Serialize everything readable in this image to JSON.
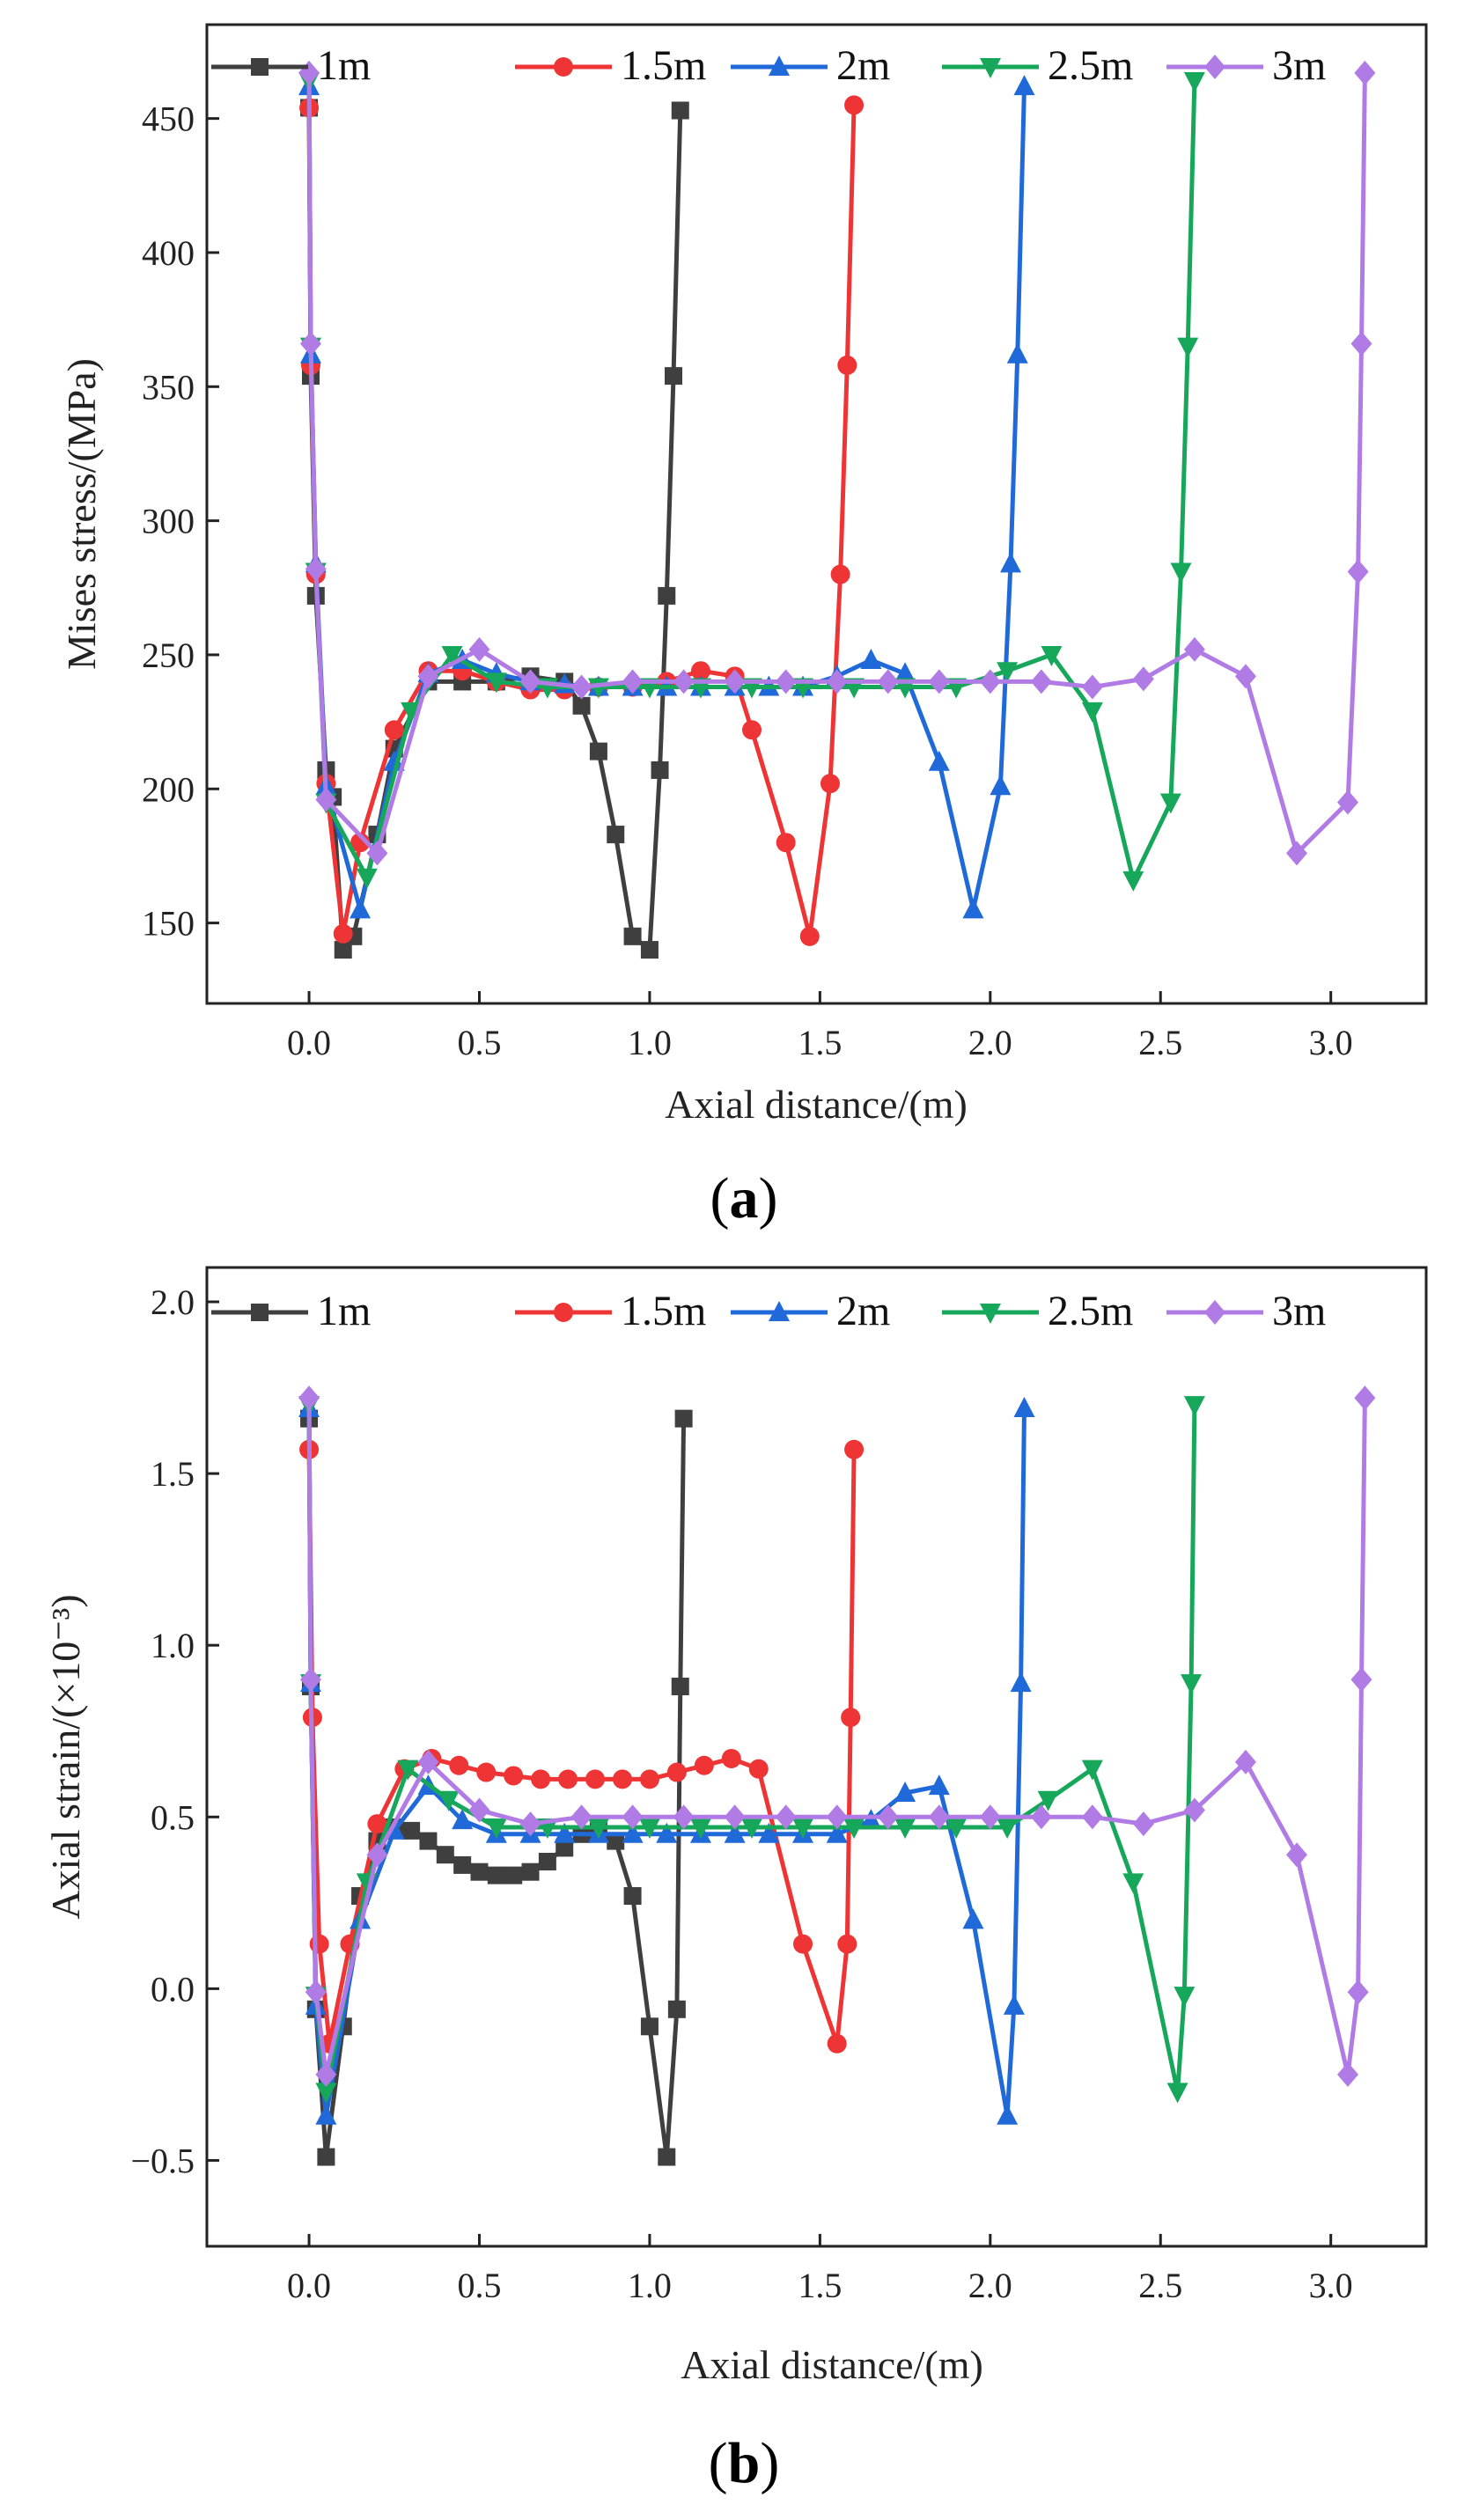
{
  "chart_data": [
    {
      "type": "line",
      "panel_label": "(a)",
      "panel_letter": "a",
      "xlabel": "Axial distance/(m)",
      "ylabel": "Mises stress/(MPa)",
      "xlim": [
        -0.3,
        3.28
      ],
      "ylim": [
        120,
        485
      ],
      "xticks": [
        "0.0",
        "0.5",
        "1.0",
        "1.5",
        "2.0",
        "2.5",
        "3.0"
      ],
      "yticks": [
        "150",
        "200",
        "250",
        "300",
        "350",
        "400",
        "450"
      ],
      "legend": [
        "1m",
        "1.5m",
        "2m",
        "2.5m",
        "3m"
      ],
      "series": [
        {
          "name": "1m",
          "color": "#3f3f3f",
          "marker": "square",
          "x": [
            0,
            0.005,
            0.02,
            0.05,
            0.07,
            0.1,
            0.13,
            0.2,
            0.25,
            0.35,
            0.45,
            0.55,
            0.65,
            0.75,
            0.8,
            0.85,
            0.9,
            0.95,
            1.0,
            1.03,
            1.05,
            1.07,
            1.09
          ],
          "y": [
            454,
            354,
            272,
            207,
            197,
            140,
            145,
            183,
            215,
            240,
            240,
            240,
            242,
            240,
            231,
            214,
            183,
            145,
            140,
            207,
            272,
            354,
            453
          ]
        },
        {
          "name": "1.5m",
          "color": "#ee3434",
          "marker": "circle",
          "x": [
            0,
            0.005,
            0.02,
            0.05,
            0.1,
            0.15,
            0.25,
            0.35,
            0.45,
            0.55,
            0.65,
            0.75,
            0.85,
            0.95,
            1.05,
            1.15,
            1.25,
            1.3,
            1.4,
            1.47,
            1.53,
            1.56,
            1.58,
            1.6
          ],
          "y": [
            454,
            358,
            280,
            202,
            146,
            180,
            222,
            244,
            244,
            240,
            237,
            237,
            238,
            238,
            240,
            244,
            242,
            222,
            180,
            145,
            202,
            280,
            358,
            455
          ]
        },
        {
          "name": "2m",
          "color": "#1f69d9",
          "marker": "triangle-up",
          "x": [
            0,
            0.005,
            0.02,
            0.05,
            0.15,
            0.25,
            0.35,
            0.45,
            0.55,
            0.65,
            0.75,
            0.85,
            0.95,
            1.05,
            1.15,
            1.25,
            1.35,
            1.45,
            1.55,
            1.65,
            1.75,
            1.85,
            1.95,
            2.03,
            2.06,
            2.08,
            2.1
          ],
          "y": [
            462,
            362,
            284,
            201,
            155,
            210,
            243,
            248,
            243,
            240,
            239,
            238,
            238,
            238,
            238,
            238,
            238,
            238,
            242,
            248,
            243,
            210,
            155,
            201,
            284,
            362,
            462
          ]
        },
        {
          "name": "2.5m",
          "color": "#17a75b",
          "marker": "triangle-down",
          "x": [
            0,
            0.005,
            0.02,
            0.05,
            0.17,
            0.3,
            0.42,
            0.55,
            0.7,
            0.85,
            1.0,
            1.15,
            1.3,
            1.45,
            1.6,
            1.75,
            1.9,
            2.05,
            2.18,
            2.3,
            2.42,
            2.53,
            2.56,
            2.58,
            2.6
          ],
          "y": [
            464,
            365,
            281,
            195,
            167,
            229,
            250,
            240,
            238,
            238,
            238,
            238,
            238,
            238,
            238,
            238,
            238,
            244,
            250,
            229,
            166,
            195,
            281,
            365,
            464
          ]
        },
        {
          "name": "3m",
          "color": "#b17be6",
          "marker": "diamond",
          "x": [
            0,
            0.005,
            0.02,
            0.05,
            0.2,
            0.35,
            0.5,
            0.65,
            0.8,
            0.95,
            1.1,
            1.25,
            1.4,
            1.55,
            1.7,
            1.85,
            2.0,
            2.15,
            2.3,
            2.45,
            2.6,
            2.75,
            2.9,
            3.05,
            3.08,
            3.09,
            3.1
          ],
          "y": [
            467,
            366,
            282,
            196,
            176,
            242,
            252,
            240,
            238,
            240,
            240,
            240,
            240,
            240,
            240,
            240,
            240,
            240,
            238,
            241,
            252,
            242,
            176,
            195,
            281,
            366,
            467
          ]
        }
      ]
    },
    {
      "type": "line",
      "panel_label": "(b)",
      "panel_letter": "b",
      "xlabel": "Axial distance/(m)",
      "ylabel": "Axial strain/(×10⁻³)",
      "xlim": [
        -0.3,
        3.28
      ],
      "ylim": [
        -0.75,
        2.1
      ],
      "xticks": [
        "0.0",
        "0.5",
        "1.0",
        "1.5",
        "2.0",
        "2.5",
        "3.0"
      ],
      "yticks": [
        "−0.5",
        "0.0",
        "0.5",
        "1.0",
        "1.5",
        "2.0"
      ],
      "legend": [
        "1m",
        "1.5m",
        "2m",
        "2.5m",
        "3m"
      ],
      "series": [
        {
          "name": "1m",
          "color": "#3f3f3f",
          "marker": "square",
          "x": [
            0,
            0.005,
            0.02,
            0.05,
            0.1,
            0.15,
            0.2,
            0.25,
            0.3,
            0.35,
            0.4,
            0.45,
            0.5,
            0.55,
            0.6,
            0.65,
            0.7,
            0.75,
            0.8,
            0.85,
            0.9,
            0.95,
            1.0,
            1.05,
            1.08,
            1.09,
            1.1
          ],
          "y": [
            1.66,
            0.88,
            -0.06,
            -0.49,
            -0.11,
            0.27,
            0.43,
            0.47,
            0.46,
            0.43,
            0.39,
            0.36,
            0.34,
            0.33,
            0.33,
            0.34,
            0.37,
            0.41,
            0.45,
            0.46,
            0.43,
            0.27,
            -0.11,
            -0.49,
            -0.06,
            0.88,
            1.66
          ]
        },
        {
          "name": "1.5m",
          "color": "#ee3434",
          "marker": "circle",
          "x": [
            0,
            0.01,
            0.03,
            0.06,
            0.12,
            0.2,
            0.28,
            0.36,
            0.44,
            0.52,
            0.6,
            0.68,
            0.76,
            0.84,
            0.92,
            1.0,
            1.08,
            1.16,
            1.24,
            1.32,
            1.45,
            1.55,
            1.58,
            1.59,
            1.6
          ],
          "y": [
            1.57,
            0.79,
            0.13,
            -0.16,
            0.13,
            0.48,
            0.64,
            0.67,
            0.65,
            0.63,
            0.62,
            0.61,
            0.61,
            0.61,
            0.61,
            0.61,
            0.63,
            0.65,
            0.67,
            0.64,
            0.13,
            -0.16,
            0.13,
            0.79,
            1.57
          ]
        },
        {
          "name": "2m",
          "color": "#1f69d9",
          "marker": "triangle-up",
          "x": [
            0,
            0.005,
            0.02,
            0.05,
            0.15,
            0.25,
            0.35,
            0.45,
            0.55,
            0.65,
            0.75,
            0.85,
            0.95,
            1.05,
            1.15,
            1.25,
            1.35,
            1.45,
            1.55,
            1.65,
            1.75,
            1.85,
            1.95,
            2.05,
            2.07,
            2.09,
            2.1
          ],
          "y": [
            1.69,
            0.89,
            -0.05,
            -0.37,
            0.2,
            0.46,
            0.59,
            0.49,
            0.45,
            0.45,
            0.45,
            0.45,
            0.45,
            0.45,
            0.45,
            0.45,
            0.45,
            0.45,
            0.45,
            0.49,
            0.57,
            0.59,
            0.2,
            -0.37,
            -0.05,
            0.89,
            1.69
          ]
        },
        {
          "name": "2.5m",
          "color": "#17a75b",
          "marker": "triangle-down",
          "x": [
            0,
            0.005,
            0.02,
            0.05,
            0.17,
            0.29,
            0.41,
            0.55,
            0.7,
            0.85,
            1.0,
            1.15,
            1.3,
            1.45,
            1.6,
            1.75,
            1.9,
            2.05,
            2.17,
            2.3,
            2.42,
            2.55,
            2.57,
            2.59,
            2.6
          ],
          "y": [
            1.7,
            0.89,
            -0.02,
            -0.3,
            0.31,
            0.64,
            0.55,
            0.47,
            0.47,
            0.47,
            0.47,
            0.47,
            0.47,
            0.47,
            0.47,
            0.47,
            0.47,
            0.47,
            0.55,
            0.64,
            0.31,
            -0.3,
            -0.02,
            0.89,
            1.7
          ]
        },
        {
          "name": "3m",
          "color": "#b17be6",
          "marker": "diamond",
          "x": [
            0,
            0.005,
            0.02,
            0.05,
            0.2,
            0.35,
            0.5,
            0.65,
            0.8,
            0.95,
            1.1,
            1.25,
            1.4,
            1.55,
            1.7,
            1.85,
            2.0,
            2.15,
            2.3,
            2.45,
            2.6,
            2.75,
            2.9,
            3.05,
            3.08,
            3.09,
            3.1
          ],
          "y": [
            1.72,
            0.9,
            -0.01,
            -0.25,
            0.39,
            0.66,
            0.52,
            0.48,
            0.5,
            0.5,
            0.5,
            0.5,
            0.5,
            0.5,
            0.5,
            0.5,
            0.5,
            0.5,
            0.5,
            0.48,
            0.52,
            0.66,
            0.39,
            -0.25,
            -0.01,
            0.9,
            1.72
          ]
        }
      ]
    }
  ]
}
